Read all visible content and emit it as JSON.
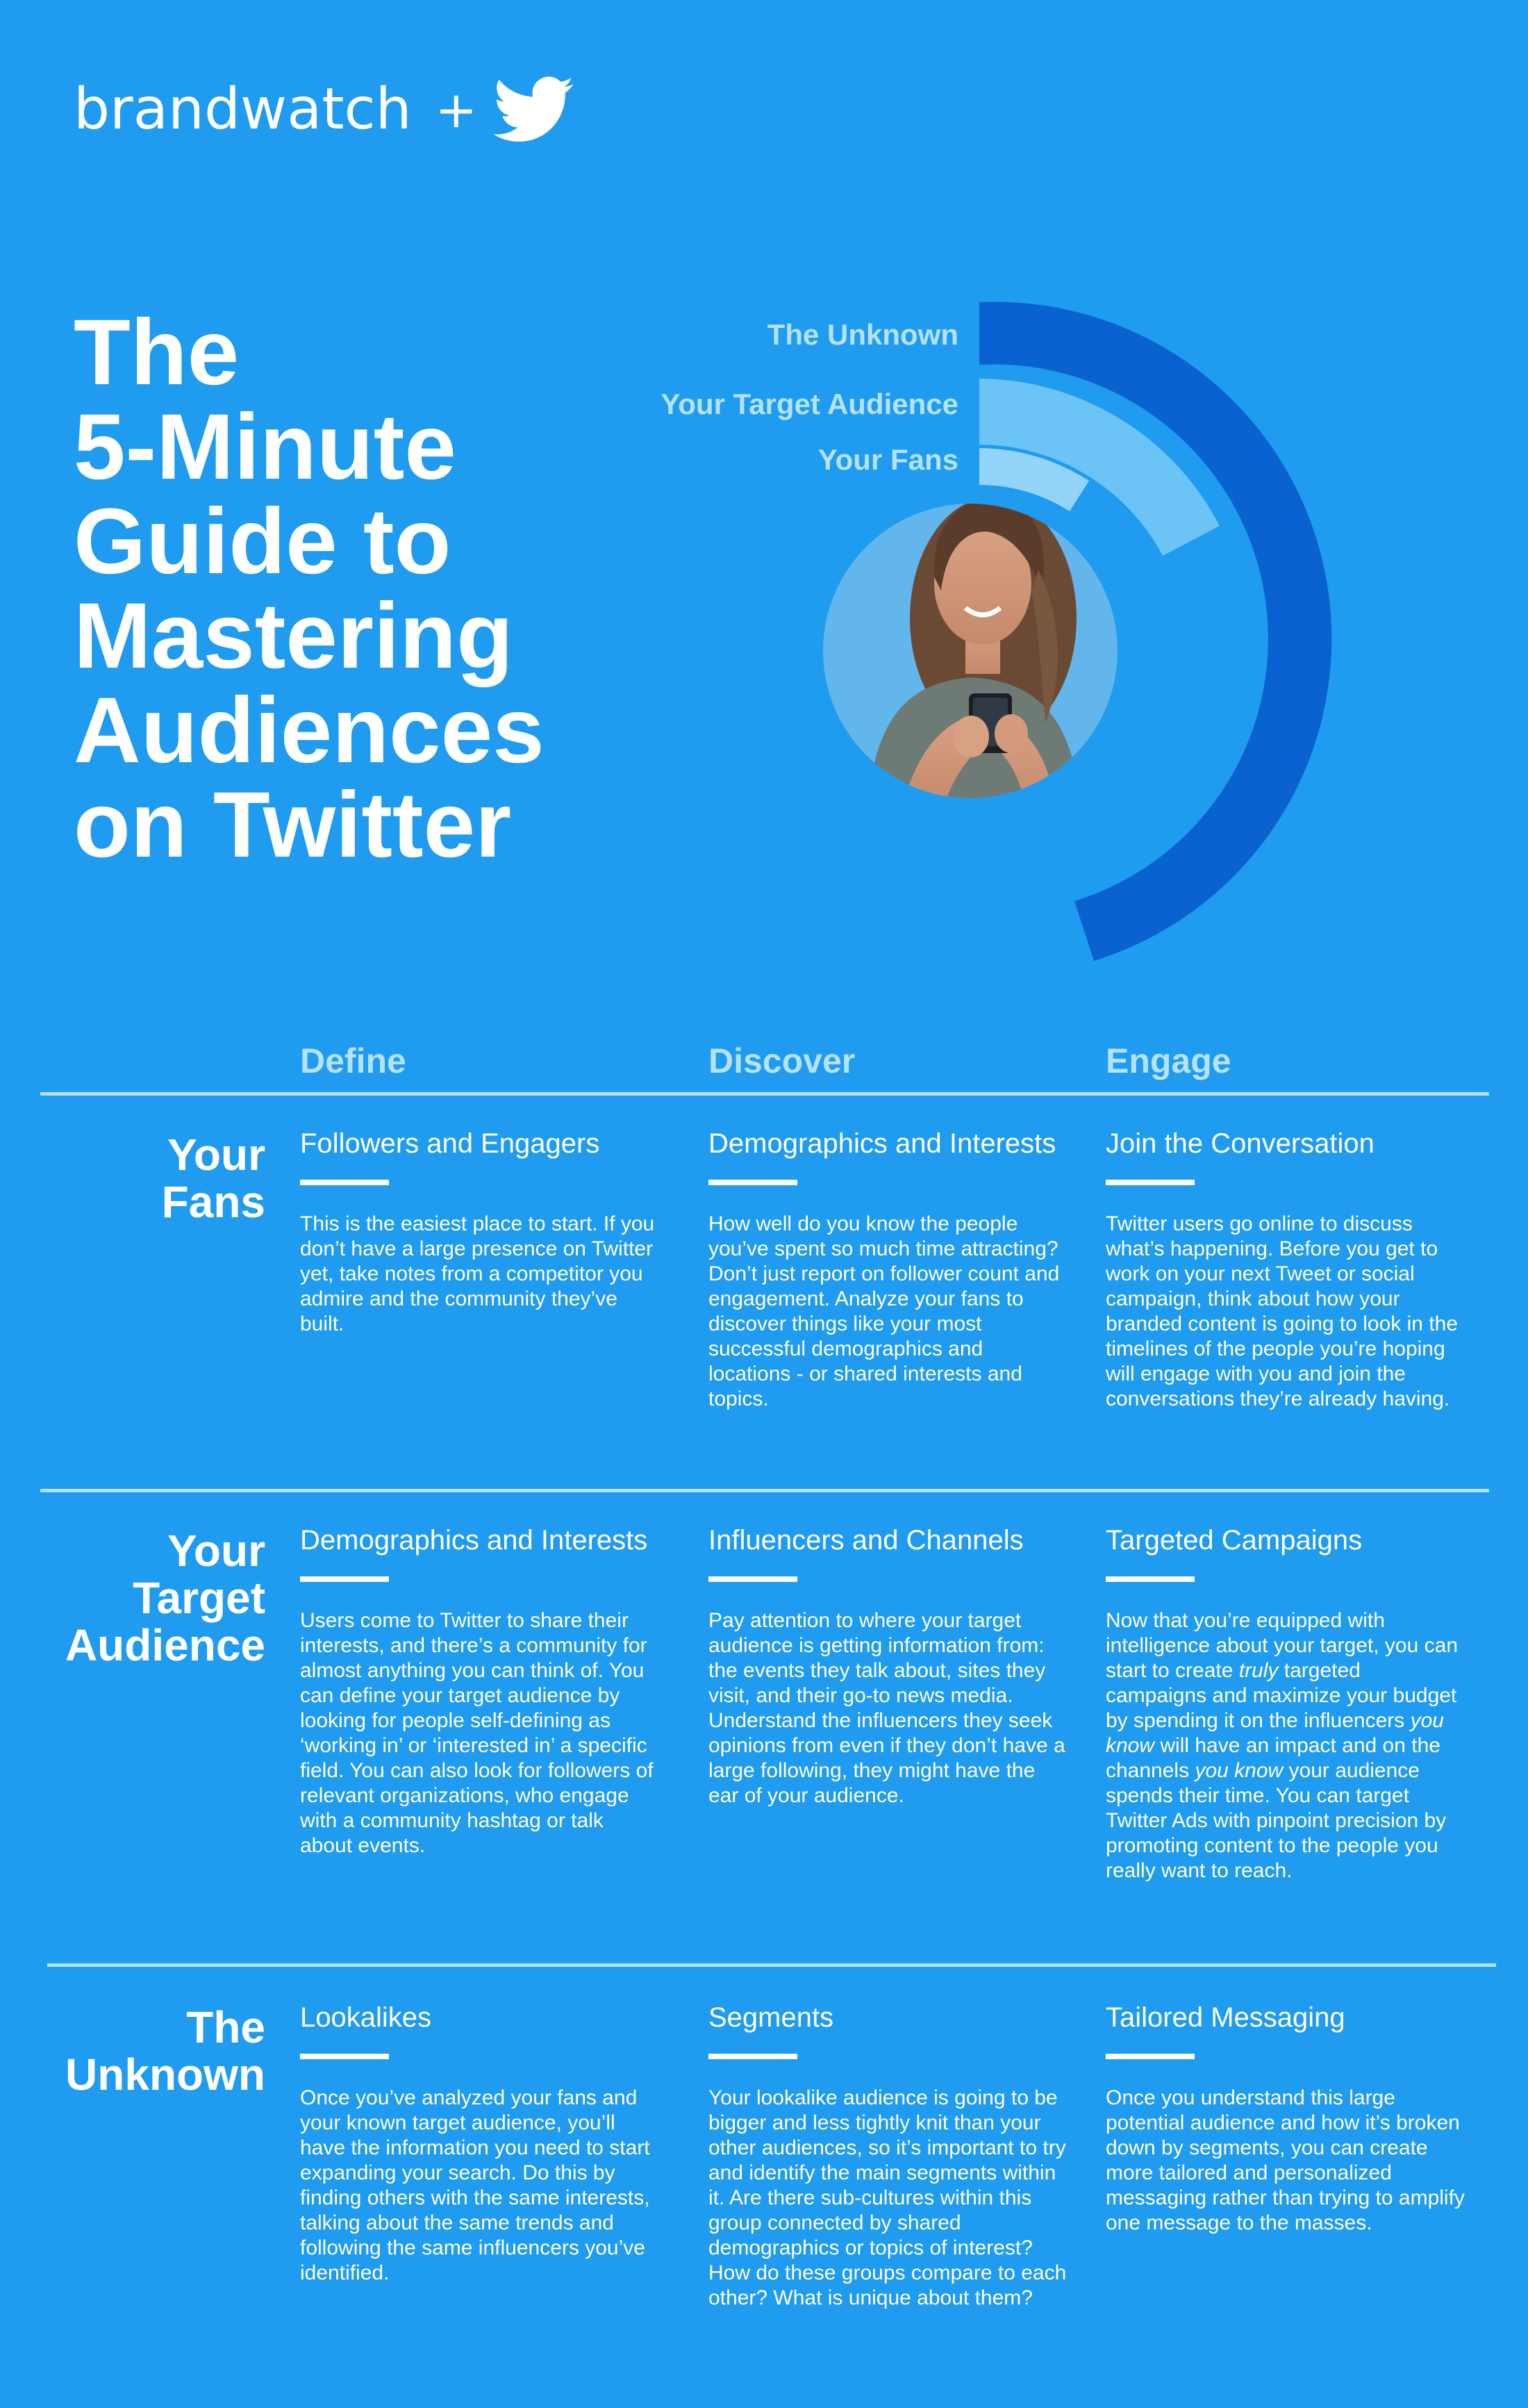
{
  "header": {
    "brand": "brandwatch",
    "plus": "+",
    "partner_icon": "twitter-bird-icon"
  },
  "title_lines": [
    "The",
    "5-Minute",
    "Guide to",
    "Mastering",
    "Audiences",
    "on Twitter"
  ],
  "graphic": {
    "ring_labels": {
      "unknown": "The Unknown",
      "target": "Your Target Audience",
      "fans": "Your Fans"
    },
    "ring_colors": {
      "unknown": "#0a62d0",
      "target": "#6cc3f5",
      "fans": "#93d4fa"
    },
    "photo_icon": "woman-with-phone-photo"
  },
  "columns": [
    "Define",
    "Discover",
    "Engage"
  ],
  "rows": [
    {
      "label_lines": [
        "Your",
        "Fans"
      ],
      "cells": [
        {
          "title": "Followers and Engagers",
          "body": "This is the easiest place to start. If you don’t have a large presence on Twitter yet, take notes from a competitor you admire and the community they’ve built."
        },
        {
          "title": "Demographics and Interests",
          "body": "How well do you know the people you’ve spent so much time attracting? Don’t just report on follower count and engagement. Analyze your fans to discover things like your most successful demographics and locations - or shared interests and topics."
        },
        {
          "title": "Join the Conversation",
          "body": "Twitter users go online to discuss what’s happening. Before you get to work on your next Tweet or social campaign, think about how your branded content is going to look in the timelines of the people you’re hoping will engage with you and join the conversations they’re already having."
        }
      ]
    },
    {
      "label_lines": [
        "Your",
        "Target",
        "Audience"
      ],
      "cells": [
        {
          "title": "Demographics and Interests",
          "body": "Users come to Twitter to share their interests, and there’s a community for almost anything you can think of. You can define your target audience by looking for people self-defining as ‘working in’ or ‘interested in’ a specific field. You can also look for followers of relevant organizations, who engage with a community hashtag or talk about events."
        },
        {
          "title": "Influencers and Channels",
          "body": "Pay attention to where your target audience is getting information from: the events they talk about, sites they visit, and their go-to news media. Understand the influencers they seek opinions from even if they don’t have a large following, they might have the ear of your audience."
        },
        {
          "title": "Targeted Campaigns",
          "body_parts": [
            {
              "t": "Now that you’re equipped with intelligence about your target, you can start to create ",
              "i": false
            },
            {
              "t": "truly",
              "i": true
            },
            {
              "t": " targeted campaigns and maximize your budget by spending it on the influencers ",
              "i": false
            },
            {
              "t": "you know",
              "i": true
            },
            {
              "t": " will have an impact and on the channels ",
              "i": false
            },
            {
              "t": "you know",
              "i": true
            },
            {
              "t": " your audience spends their time. You can target Twitter Ads with pinpoint precision by promoting content to the people you really want to reach.",
              "i": false
            }
          ]
        }
      ]
    },
    {
      "label_lines": [
        "The",
        "Unknown"
      ],
      "cells": [
        {
          "title": "Lookalikes",
          "body": "Once you’ve analyzed your fans and your known target audience, you’ll have the information you need to start expanding your search. Do this by finding others with the same interests, talking about the same trends and following the same influencers you’ve identified."
        },
        {
          "title": "Segments",
          "body": "Your lookalike audience is going to be bigger and less tightly knit than your other audiences, so it’s important to try and identify the main segments within it. Are there sub-cultures within this group connected by shared demographics or topics of interest? How do these groups compare to each other? What is unique about them?"
        },
        {
          "title": "Tailored Messaging",
          "body": "Once you understand this large potential audience and how it’s broken down by segments, you can create more tailored and personalized messaging rather than trying to amplify one message to the masses."
        }
      ]
    }
  ]
}
